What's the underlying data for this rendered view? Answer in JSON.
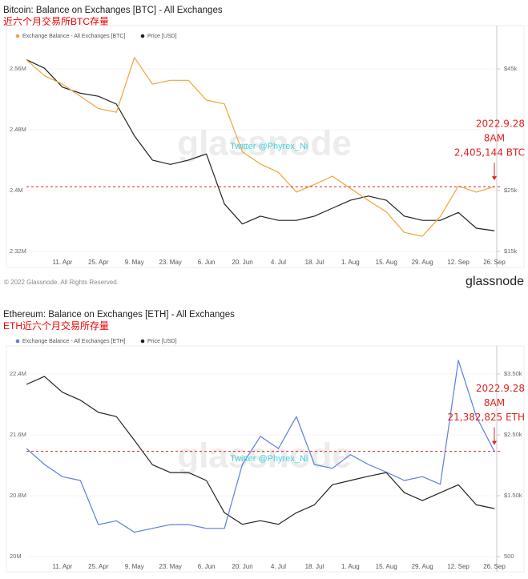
{
  "chart_data": [
    {
      "type": "line",
      "title": "Bitcoin: Balance on Exchanges [BTC] - All Exchanges",
      "subtitle": "近六个月交易所BTC存量",
      "categories": [
        null,
        null,
        "11. Apr",
        null,
        "25. Apr",
        null,
        "9. May",
        null,
        "23. May",
        null,
        "6. Jun",
        null,
        "20. Jun",
        null,
        "4. Jul",
        null,
        "18. Jul",
        null,
        "1. Aug",
        null,
        "15. Aug",
        null,
        "29. Aug",
        null,
        "12. Sep",
        null,
        "26. Sep"
      ],
      "series": [
        {
          "name": "Exchange Balance - All Exchanges [BTC]",
          "color": "#f2a33a",
          "values": [
            2572000,
            2551000,
            2540000,
            2524000,
            2508000,
            2503000,
            2575000,
            2540000,
            2545000,
            2545000,
            2519000,
            2514000,
            2451000,
            2435000,
            2424000,
            2398000,
            2408000,
            2419000,
            2403000,
            2387000,
            2372000,
            2345000,
            2340000,
            2366000,
            2406000,
            2398000,
            2405144
          ]
        },
        {
          "name": "Price [USD]",
          "color": "#222222",
          "axis": "y2",
          "values": [
            46500,
            45100,
            42000,
            41000,
            40500,
            39200,
            34000,
            30000,
            29300,
            30000,
            31000,
            22800,
            19500,
            20800,
            20100,
            20100,
            20800,
            22100,
            23400,
            24100,
            23400,
            20800,
            20100,
            20100,
            21400,
            18800,
            18400
          ]
        }
      ],
      "ylim": [
        2313700,
        2608500
      ],
      "yticks": [
        {
          "value": 2320000,
          "label": "2.32M"
        },
        {
          "value": 2400000,
          "label": "2.4M"
        },
        {
          "value": 2480000,
          "label": "2.48M"
        },
        {
          "value": 2560000,
          "label": "2.56M"
        }
      ],
      "y2lim": [
        14200,
        51050
      ],
      "y2ticks": [
        {
          "value": 15000,
          "label": "$15k"
        },
        {
          "value": 25000,
          "label": "$25k"
        },
        {
          "value": 45000,
          "label": "$45k"
        }
      ],
      "grid": true,
      "reference_line": {
        "value": 2405144,
        "color": "#e02020"
      },
      "annotation": [
        "2022.9.28",
        "8AM",
        "2,405,144 BTC"
      ],
      "watermark": "glassnode",
      "credit": "Twitter @Phyrex_Ni",
      "copyright": "© 2022 Glassnode. All Rights Reserved.",
      "logo": "glassnode"
    },
    {
      "type": "line",
      "title": "Ethereum: Balance on Exchanges [ETH] - All Exchanges",
      "subtitle": "ETH近六个月交易所存量",
      "categories": [
        null,
        null,
        "11. Apr",
        null,
        "25. Apr",
        null,
        "9. May",
        null,
        "23. May",
        null,
        "6. Jun",
        null,
        "20. Jun",
        null,
        "4. Jul",
        null,
        "18. Jul",
        null,
        "1. Aug",
        null,
        "15. Aug",
        null,
        "29. Aug",
        null,
        "12. Sep",
        null,
        "26. Sep"
      ],
      "series": [
        {
          "name": "Exchange Balance - All Exchanges [ETH]",
          "color": "#5b7fdb",
          "values": [
            21420000,
            21210000,
            21050000,
            21000000,
            20420000,
            20470000,
            20320000,
            20370000,
            20420000,
            20420000,
            20370000,
            20370000,
            21210000,
            21580000,
            21420000,
            21840000,
            21210000,
            21160000,
            21340000,
            21210000,
            21110000,
            21000000,
            21050000,
            20950000,
            22580000,
            21840000,
            21382825
          ]
        },
        {
          "name": "Price [USD]",
          "color": "#222222",
          "axis": "y2",
          "values": [
            3330,
            3460,
            3200,
            3070,
            2870,
            2800,
            2410,
            2010,
            1880,
            1880,
            1750,
            1220,
            1030,
            1090,
            1030,
            1220,
            1350,
            1680,
            1750,
            1820,
            1880,
            1550,
            1420,
            1550,
            1680,
            1350,
            1290
          ]
        }
      ],
      "ylim": [
        19947000,
        22684000
      ],
      "yticks": [
        {
          "value": 20000000,
          "label": "20M"
        },
        {
          "value": 20800000,
          "label": "20.8M"
        },
        {
          "value": 21600000,
          "label": "21.6M"
        },
        {
          "value": 22400000,
          "label": "22.4M"
        }
      ],
      "y2lim": [
        434,
        3856
      ],
      "y2ticks": [
        500,
        {
          "value": 1500,
          "label": "$1.50k"
        },
        {
          "value": 2500,
          "label": "$2.50k"
        },
        {
          "value": 3500,
          "label": "$3.50k"
        }
      ],
      "grid": true,
      "reference_line": {
        "value": 21382825,
        "color": "#e02020"
      },
      "annotation": [
        "2022.9.28",
        "8AM",
        "21,382,825 ETH"
      ],
      "watermark": "glassnode",
      "credit": "Twitter @Phyrex_Ni"
    }
  ]
}
